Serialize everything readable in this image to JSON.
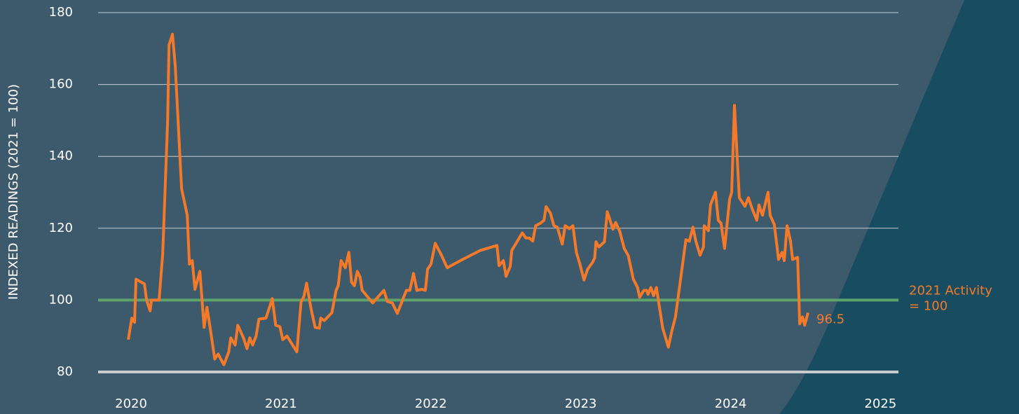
{
  "chart_data": {
    "type": "line",
    "y_label": "INDEXED READINGS (2021 = 100)",
    "xlim": [
      2019.78,
      2025.12
    ],
    "xticks": [
      2020,
      2021,
      2022,
      2023,
      2024,
      2025
    ],
    "ylim": [
      80,
      180
    ],
    "yticks": [
      80,
      100,
      120,
      140,
      160,
      180
    ],
    "grid": true,
    "reference_line": {
      "value": 100,
      "label": [
        "2021 Activity",
        "= 100"
      ],
      "color": "#5fa36c"
    },
    "series": [
      {
        "color": "#f47a2a",
        "x": [
          2019.981,
          2020.005,
          2020.023,
          2020.033,
          2020.089,
          2020.103,
          2020.127,
          2020.136,
          2020.187,
          2020.211,
          2020.244,
          2020.253,
          2020.276,
          2020.295,
          2020.337,
          2020.375,
          2020.389,
          2020.408,
          2020.426,
          2020.459,
          2020.487,
          2020.506,
          2020.525,
          2020.558,
          2020.581,
          2020.619,
          2020.651,
          2020.665,
          2020.694,
          2020.712,
          2020.75,
          2020.773,
          2020.792,
          2020.811,
          2020.834,
          2020.853,
          2020.9,
          2020.942,
          2020.965,
          2020.993,
          2021.012,
          2021.04,
          2021.106,
          2021.134,
          2021.153,
          2021.171,
          2021.2,
          2021.228,
          2021.256,
          2021.265,
          2021.289,
          2021.34,
          2021.368,
          2021.382,
          2021.401,
          2021.429,
          2021.453,
          2021.471,
          2021.49,
          2021.509,
          2021.528,
          2021.542,
          2021.612,
          2021.687,
          2021.71,
          2021.743,
          2021.776,
          2021.813,
          2021.837,
          2021.86,
          2021.884,
          2021.907,
          2021.94,
          2021.963,
          2021.978,
          2022.001,
          2022.029,
          2022.071,
          2022.109,
          2022.212,
          2022.329,
          2022.441,
          2022.455,
          2022.484,
          2022.502,
          2022.53,
          2022.54,
          2022.61,
          2022.634,
          2022.657,
          2022.68,
          2022.699,
          2022.732,
          2022.755,
          2022.769,
          2022.798,
          2022.821,
          2022.844,
          2022.877,
          2022.896,
          2022.924,
          2022.948,
          2022.971,
          2022.994,
          2023.022,
          2023.046,
          2023.079,
          2023.093,
          2023.102,
          2023.121,
          2023.158,
          2023.177,
          2023.215,
          2023.233,
          2023.261,
          2023.29,
          2023.318,
          2023.351,
          2023.379,
          2023.393,
          2023.421,
          2023.44,
          2023.449,
          2023.468,
          2023.486,
          2023.505,
          2023.547,
          2023.585,
          2023.608,
          2023.632,
          2023.702,
          2023.725,
          2023.749,
          2023.768,
          2023.796,
          2023.819,
          2023.824,
          2023.852,
          2023.866,
          2023.899,
          2023.918,
          2023.936,
          2023.96,
          2023.993,
          2024.007,
          2024.026,
          2024.058,
          2024.096,
          2024.119,
          2024.143,
          2024.175,
          2024.189,
          2024.213,
          2024.25,
          2024.264,
          2024.292,
          2024.32,
          2024.344,
          2024.358,
          2024.377,
          2024.4,
          2024.414,
          2024.447,
          2024.461,
          2024.48,
          2024.494,
          2024.517
        ],
        "values": [
          89,
          95,
          93.8,
          105.8,
          104.5,
          100,
          97,
          100,
          100,
          113,
          150,
          171,
          174,
          165,
          131,
          123.6,
          110,
          111,
          103,
          108,
          92.4,
          98,
          93,
          83.6,
          85,
          82,
          85.5,
          89.5,
          87.5,
          93,
          89.5,
          86.5,
          89.5,
          87.5,
          90,
          94.7,
          95,
          100.4,
          93,
          92.6,
          89,
          90,
          85.6,
          99.6,
          101,
          104.7,
          97.7,
          92.4,
          92.2,
          95,
          94.3,
          96.5,
          102.7,
          104,
          111,
          109,
          113.3,
          105,
          104,
          108,
          106.4,
          102.7,
          99.2,
          102.7,
          99.6,
          99.2,
          96.3,
          100.2,
          102.7,
          102.7,
          107.4,
          102.7,
          103,
          102.7,
          108.6,
          110,
          115.8,
          112.5,
          109,
          111.3,
          113.8,
          115.2,
          109.6,
          111,
          106.6,
          109.4,
          113.8,
          118.7,
          117.3,
          117.3,
          116.4,
          120.7,
          121.4,
          122.2,
          126,
          124.2,
          120.7,
          120.3,
          115.6,
          120.7,
          119.9,
          120.7,
          113.3,
          110.1,
          105.6,
          108.6,
          110.5,
          111.7,
          116.2,
          114.8,
          116.2,
          124.6,
          119.7,
          121.6,
          119.1,
          114.4,
          112.3,
          105.8,
          103.5,
          100.8,
          102.7,
          102.7,
          101.6,
          103.5,
          101.2,
          103.5,
          92.2,
          86.9,
          91.4,
          95.3,
          116.8,
          116.4,
          120.3,
          116.4,
          112.5,
          114.8,
          120.7,
          119.3,
          126.5,
          130,
          122.2,
          121.4,
          114.4,
          128,
          130,
          154.2,
          128.5,
          126.1,
          128.5,
          125.5,
          122.2,
          126.5,
          123.6,
          130,
          123.6,
          121,
          111.3,
          113.3,
          111,
          120.7,
          116.4,
          111.3,
          111.9,
          93.4,
          95.3,
          93,
          96.5
        ]
      }
    ]
  }
}
